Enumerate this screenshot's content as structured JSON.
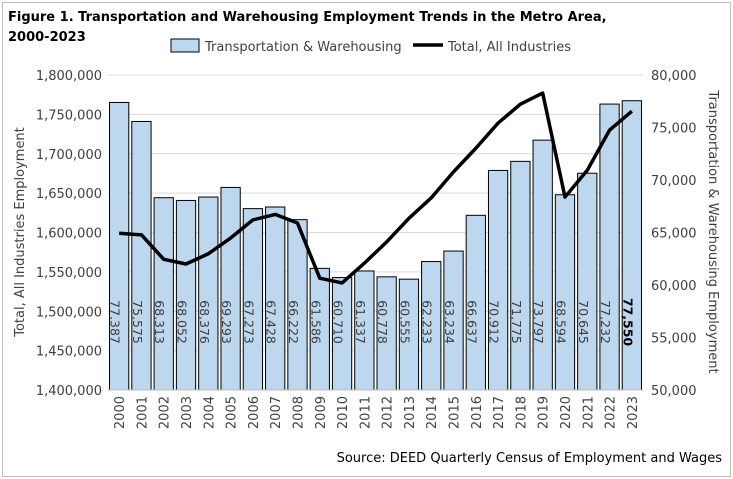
{
  "chart_data": {
    "type": "bar+line",
    "title_line1": "Figure 1. Transportation and Warehousing Employment Trends in the Metro Area,",
    "title_line2": "2000-2023",
    "source": "Source: DEED Quarterly Census of Employment and Wages",
    "ylabel_left": "Total, All Industries Employment",
    "ylabel_right": "Transportation & Warehousing Employment",
    "ylim_left": [
      1400000,
      1800000
    ],
    "ylim_right": [
      50000,
      80000
    ],
    "yticks_left": [
      "1,400,000",
      "1,450,000",
      "1,500,000",
      "1,550,000",
      "1,600,000",
      "1,650,000",
      "1,700,000",
      "1,750,000",
      "1,800,000"
    ],
    "yticks_right": [
      "50,000",
      "55,000",
      "60,000",
      "65,000",
      "70,000",
      "75,000",
      "80,000"
    ],
    "legend_placement": "top",
    "categories": [
      "2000",
      "2001",
      "2002",
      "2003",
      "2004",
      "2005",
      "2006",
      "2007",
      "2008",
      "2009",
      "2010",
      "2011",
      "2012",
      "2013",
      "2014",
      "2015",
      "2016",
      "2017",
      "2018",
      "2019",
      "2020",
      "2021",
      "2022",
      "2023"
    ],
    "series": [
      {
        "name": "Transportation & Warehousing",
        "type": "bar",
        "axis": "right",
        "color": "#bdd7ee",
        "values": [
          77387,
          75575,
          68313,
          68052,
          68376,
          69293,
          67273,
          67428,
          66222,
          61586,
          60710,
          61337,
          60778,
          60555,
          62233,
          63234,
          66637,
          70912,
          71775,
          73797,
          68594,
          70645,
          77232,
          77550
        ],
        "labels": [
          "77,387",
          "75,575",
          "68,313",
          "68,052",
          "68,376",
          "69,293",
          "67,273",
          "67,428",
          "66,222",
          "61,586",
          "60,710",
          "61,337",
          "60,778",
          "60,555",
          "62,233",
          "63,234",
          "66,637",
          "70,912",
          "71,775",
          "73,797",
          "68,594",
          "70,645",
          "77,232",
          "77,550"
        ]
      },
      {
        "name": "Total, All Industries",
        "type": "line",
        "axis": "left",
        "color": "#000000",
        "values": [
          1599000,
          1597000,
          1566000,
          1560000,
          1573000,
          1593000,
          1616000,
          1623000,
          1612000,
          1542000,
          1536000,
          1561000,
          1588000,
          1618000,
          1644000,
          1677000,
          1707000,
          1739000,
          1763000,
          1777000,
          1645000,
          1679000,
          1730000,
          1754000
        ]
      }
    ]
  }
}
